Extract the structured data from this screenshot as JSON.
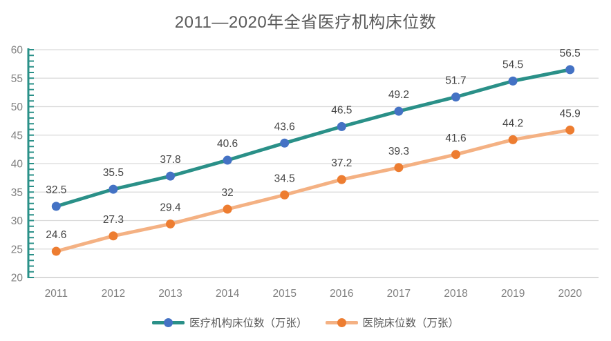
{
  "chart_data": {
    "type": "line",
    "title": "2011—2020年全省医疗机构床位数",
    "categories": [
      "2011",
      "2012",
      "2013",
      "2014",
      "2015",
      "2016",
      "2017",
      "2018",
      "2019",
      "2020"
    ],
    "series": [
      {
        "name": "医疗机构床位数（万张）",
        "values": [
          32.5,
          35.5,
          37.8,
          40.6,
          43.6,
          46.5,
          49.2,
          51.7,
          54.5,
          56.5
        ],
        "line_color": "#2A9088",
        "marker_color": "#4472C4"
      },
      {
        "name": "医院床位数（万张）",
        "values": [
          24.6,
          27.3,
          29.4,
          32,
          34.5,
          37.2,
          39.3,
          41.6,
          44.2,
          45.9
        ],
        "line_color": "#F4B183",
        "marker_color": "#ED7D31"
      }
    ],
    "ylim": [
      20,
      60
    ],
    "yticks": [
      20,
      25,
      30,
      35,
      40,
      45,
      50,
      55,
      60
    ],
    "minor_tick_step": 1,
    "grid": true,
    "data_labels": "above",
    "legend_position": "bottom"
  },
  "colors": {
    "background": "#FFFFFF",
    "title_text": "#595959",
    "axis_text": "#808080",
    "data_label_text": "#444444",
    "gridline": "#D9D9D9",
    "x_axis_line": "#D9D9D9",
    "y_axis_line": "#2A9088",
    "legend_text": "#595959"
  }
}
